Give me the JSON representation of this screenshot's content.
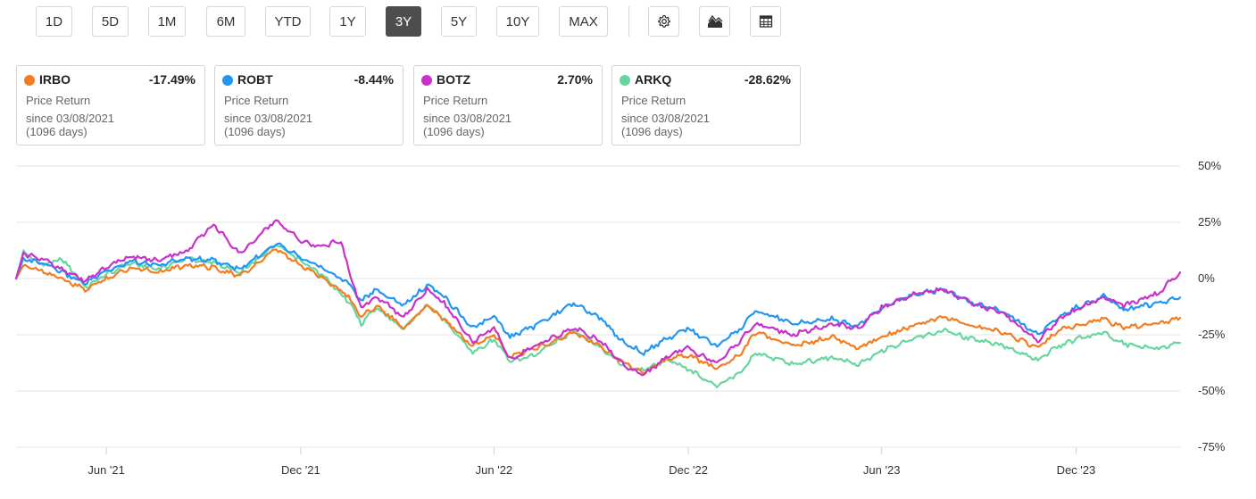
{
  "toolbar": {
    "periods": [
      "1D",
      "5D",
      "1M",
      "6M",
      "YTD",
      "1Y",
      "3Y",
      "5Y",
      "10Y",
      "MAX"
    ],
    "active_period": "3Y",
    "icons": [
      "gear-icon",
      "mountain-chart-icon",
      "table-icon"
    ]
  },
  "cards": [
    {
      "ticker": "IRBO",
      "value": "-17.49%",
      "label": "Price Return",
      "since": "since 03/08/2021",
      "days": "(1096 days)",
      "color": "#f57c1f"
    },
    {
      "ticker": "ROBT",
      "value": "-8.44%",
      "label": "Price Return",
      "since": "since 03/08/2021",
      "days": "(1096 days)",
      "color": "#2196f3"
    },
    {
      "ticker": "BOTZ",
      "value": "2.70%",
      "label": "Price Return",
      "since": "since 03/08/2021",
      "days": "(1096 days)",
      "color": "#c832c8"
    },
    {
      "ticker": "ARKQ",
      "value": "-28.62%",
      "label": "Price Return",
      "since": "since 03/08/2021",
      "days": "(1096 days)",
      "color": "#66d6a0"
    }
  ],
  "chart_data": {
    "type": "line",
    "x_start": "2021-03-08",
    "x_end": "2024-03-08",
    "x_ticks": [
      {
        "label": "Jun '21",
        "date": "2021-06-01"
      },
      {
        "label": "Dec '21",
        "date": "2021-12-01"
      },
      {
        "label": "Jun '22",
        "date": "2022-06-01"
      },
      {
        "label": "Dec '22",
        "date": "2022-12-01"
      },
      {
        "label": "Jun '23",
        "date": "2023-06-01"
      },
      {
        "label": "Dec '23",
        "date": "2023-12-01"
      }
    ],
    "y_ticks": [
      {
        "label": "50%",
        "value": 50
      },
      {
        "label": "25%",
        "value": 25
      },
      {
        "label": "0%",
        "value": 0
      },
      {
        "label": "-25%",
        "value": -25
      },
      {
        "label": "-50%",
        "value": -50
      },
      {
        "label": "-75%",
        "value": -75
      }
    ],
    "ylim": [
      -75,
      50
    ],
    "grid": true,
    "y_axis_side": "right",
    "series": [
      {
        "name": "ARKQ",
        "color": "#66d6a0",
        "points": [
          [
            "2021-03-08",
            0
          ],
          [
            "2021-03-15",
            12
          ],
          [
            "2021-04-01",
            6
          ],
          [
            "2021-04-20",
            9
          ],
          [
            "2021-05-12",
            -4
          ],
          [
            "2021-06-01",
            2
          ],
          [
            "2021-06-25",
            7
          ],
          [
            "2021-07-20",
            4
          ],
          [
            "2021-08-15",
            9
          ],
          [
            "2021-09-10",
            7
          ],
          [
            "2021-10-05",
            3
          ],
          [
            "2021-11-08",
            15
          ],
          [
            "2021-11-30",
            8
          ],
          [
            "2021-12-20",
            2
          ],
          [
            "2022-01-15",
            -10
          ],
          [
            "2022-01-27",
            -20
          ],
          [
            "2022-02-10",
            -13
          ],
          [
            "2022-03-08",
            -22
          ],
          [
            "2022-03-30",
            -12
          ],
          [
            "2022-04-15",
            -18
          ],
          [
            "2022-05-12",
            -33
          ],
          [
            "2022-06-01",
            -27
          ],
          [
            "2022-06-16",
            -37
          ],
          [
            "2022-07-10",
            -34
          ],
          [
            "2022-08-15",
            -23
          ],
          [
            "2022-09-10",
            -31
          ],
          [
            "2022-09-30",
            -38
          ],
          [
            "2022-10-20",
            -41
          ],
          [
            "2022-11-10",
            -36
          ],
          [
            "2022-11-30",
            -40
          ],
          [
            "2022-12-28",
            -48
          ],
          [
            "2023-01-20",
            -41
          ],
          [
            "2023-02-02",
            -33
          ],
          [
            "2023-03-10",
            -38
          ],
          [
            "2023-04-15",
            -35
          ],
          [
            "2023-05-10",
            -38
          ],
          [
            "2023-06-01",
            -32
          ],
          [
            "2023-07-01",
            -27
          ],
          [
            "2023-07-30",
            -23
          ],
          [
            "2023-08-25",
            -27
          ],
          [
            "2023-09-25",
            -30
          ],
          [
            "2023-10-26",
            -36
          ],
          [
            "2023-11-15",
            -30
          ],
          [
            "2023-12-01",
            -27
          ],
          [
            "2023-12-27",
            -24
          ],
          [
            "2024-01-15",
            -29
          ],
          [
            "2024-02-15",
            -31
          ],
          [
            "2024-03-08",
            -28.6
          ]
        ]
      },
      {
        "name": "IRBO",
        "color": "#f57c1f",
        "points": [
          [
            "2021-03-08",
            0
          ],
          [
            "2021-03-15",
            6
          ],
          [
            "2021-04-05",
            3
          ],
          [
            "2021-05-12",
            -5
          ],
          [
            "2021-06-01",
            0
          ],
          [
            "2021-06-25",
            5
          ],
          [
            "2021-07-20",
            3
          ],
          [
            "2021-08-15",
            6
          ],
          [
            "2021-09-10",
            5
          ],
          [
            "2021-10-05",
            1
          ],
          [
            "2021-11-08",
            13
          ],
          [
            "2021-11-30",
            6
          ],
          [
            "2021-12-20",
            1
          ],
          [
            "2022-01-15",
            -8
          ],
          [
            "2022-01-27",
            -17
          ],
          [
            "2022-02-10",
            -12
          ],
          [
            "2022-03-08",
            -22
          ],
          [
            "2022-03-30",
            -12
          ],
          [
            "2022-04-15",
            -18
          ],
          [
            "2022-05-12",
            -30
          ],
          [
            "2022-06-01",
            -25
          ],
          [
            "2022-06-16",
            -35
          ],
          [
            "2022-07-10",
            -31
          ],
          [
            "2022-08-15",
            -24
          ],
          [
            "2022-09-10",
            -30
          ],
          [
            "2022-09-30",
            -37
          ],
          [
            "2022-10-20",
            -42
          ],
          [
            "2022-11-10",
            -36
          ],
          [
            "2022-11-30",
            -34
          ],
          [
            "2022-12-28",
            -40
          ],
          [
            "2023-01-20",
            -33
          ],
          [
            "2023-02-02",
            -24
          ],
          [
            "2023-03-10",
            -30
          ],
          [
            "2023-04-15",
            -26
          ],
          [
            "2023-05-10",
            -31
          ],
          [
            "2023-06-01",
            -26
          ],
          [
            "2023-07-01",
            -21
          ],
          [
            "2023-07-30",
            -17
          ],
          [
            "2023-08-25",
            -21
          ],
          [
            "2023-09-25",
            -24
          ],
          [
            "2023-10-26",
            -31
          ],
          [
            "2023-11-15",
            -23
          ],
          [
            "2023-12-01",
            -21
          ],
          [
            "2023-12-27",
            -18
          ],
          [
            "2024-01-15",
            -22
          ],
          [
            "2024-02-15",
            -20
          ],
          [
            "2024-03-08",
            -17.5
          ]
        ]
      },
      {
        "name": "ROBT",
        "color": "#2196f3",
        "points": [
          [
            "2021-03-08",
            0
          ],
          [
            "2021-03-15",
            9
          ],
          [
            "2021-04-05",
            6
          ],
          [
            "2021-05-12",
            -2
          ],
          [
            "2021-06-01",
            3
          ],
          [
            "2021-06-25",
            8
          ],
          [
            "2021-07-20",
            6
          ],
          [
            "2021-08-15",
            9
          ],
          [
            "2021-09-10",
            8
          ],
          [
            "2021-10-05",
            4
          ],
          [
            "2021-11-08",
            16
          ],
          [
            "2021-11-30",
            10
          ],
          [
            "2021-12-20",
            5
          ],
          [
            "2022-01-15",
            -2
          ],
          [
            "2022-01-27",
            -10
          ],
          [
            "2022-02-10",
            -5
          ],
          [
            "2022-03-08",
            -12
          ],
          [
            "2022-03-30",
            -3
          ],
          [
            "2022-04-15",
            -8
          ],
          [
            "2022-05-12",
            -22
          ],
          [
            "2022-06-01",
            -17
          ],
          [
            "2022-06-16",
            -26
          ],
          [
            "2022-07-10",
            -21
          ],
          [
            "2022-08-15",
            -11
          ],
          [
            "2022-09-10",
            -18
          ],
          [
            "2022-09-30",
            -28
          ],
          [
            "2022-10-20",
            -33
          ],
          [
            "2022-11-10",
            -27
          ],
          [
            "2022-11-30",
            -22
          ],
          [
            "2022-12-28",
            -30
          ],
          [
            "2023-01-20",
            -22
          ],
          [
            "2023-02-02",
            -14
          ],
          [
            "2023-03-10",
            -20
          ],
          [
            "2023-04-15",
            -18
          ],
          [
            "2023-05-10",
            -21
          ],
          [
            "2023-06-01",
            -13
          ],
          [
            "2023-07-01",
            -7
          ],
          [
            "2023-07-30",
            -5
          ],
          [
            "2023-08-25",
            -11
          ],
          [
            "2023-09-25",
            -15
          ],
          [
            "2023-10-26",
            -25
          ],
          [
            "2023-11-15",
            -17
          ],
          [
            "2023-12-01",
            -13
          ],
          [
            "2023-12-27",
            -8
          ],
          [
            "2024-01-15",
            -14
          ],
          [
            "2024-02-15",
            -11
          ],
          [
            "2024-03-08",
            -8.4
          ]
        ]
      },
      {
        "name": "BOTZ",
        "color": "#c832c8",
        "points": [
          [
            "2021-03-08",
            0
          ],
          [
            "2021-03-15",
            11
          ],
          [
            "2021-04-05",
            8
          ],
          [
            "2021-05-12",
            -1
          ],
          [
            "2021-06-01",
            5
          ],
          [
            "2021-06-25",
            10
          ],
          [
            "2021-07-20",
            8
          ],
          [
            "2021-08-15",
            12
          ],
          [
            "2021-09-10",
            24
          ],
          [
            "2021-10-05",
            11
          ],
          [
            "2021-11-08",
            26
          ],
          [
            "2021-11-30",
            17
          ],
          [
            "2021-12-20",
            14
          ],
          [
            "2022-01-08",
            17
          ],
          [
            "2022-01-15",
            4
          ],
          [
            "2022-01-27",
            -13
          ],
          [
            "2022-02-10",
            -8
          ],
          [
            "2022-03-08",
            -17
          ],
          [
            "2022-03-30",
            -5
          ],
          [
            "2022-04-15",
            -11
          ],
          [
            "2022-05-12",
            -28
          ],
          [
            "2022-06-01",
            -22
          ],
          [
            "2022-06-16",
            -36
          ],
          [
            "2022-07-10",
            -30
          ],
          [
            "2022-08-15",
            -22
          ],
          [
            "2022-09-10",
            -28
          ],
          [
            "2022-09-30",
            -38
          ],
          [
            "2022-10-20",
            -43
          ],
          [
            "2022-11-10",
            -35
          ],
          [
            "2022-11-30",
            -31
          ],
          [
            "2022-12-28",
            -38
          ],
          [
            "2023-01-20",
            -27
          ],
          [
            "2023-02-02",
            -20
          ],
          [
            "2023-03-10",
            -25
          ],
          [
            "2023-04-15",
            -20
          ],
          [
            "2023-05-10",
            -22
          ],
          [
            "2023-06-01",
            -13
          ],
          [
            "2023-07-01",
            -7
          ],
          [
            "2023-07-30",
            -5
          ],
          [
            "2023-08-25",
            -11
          ],
          [
            "2023-09-25",
            -16
          ],
          [
            "2023-10-26",
            -28
          ],
          [
            "2023-11-15",
            -18
          ],
          [
            "2023-12-01",
            -14
          ],
          [
            "2023-12-27",
            -8
          ],
          [
            "2024-01-15",
            -12
          ],
          [
            "2024-02-15",
            -7
          ],
          [
            "2024-03-08",
            2.7
          ]
        ]
      }
    ]
  }
}
